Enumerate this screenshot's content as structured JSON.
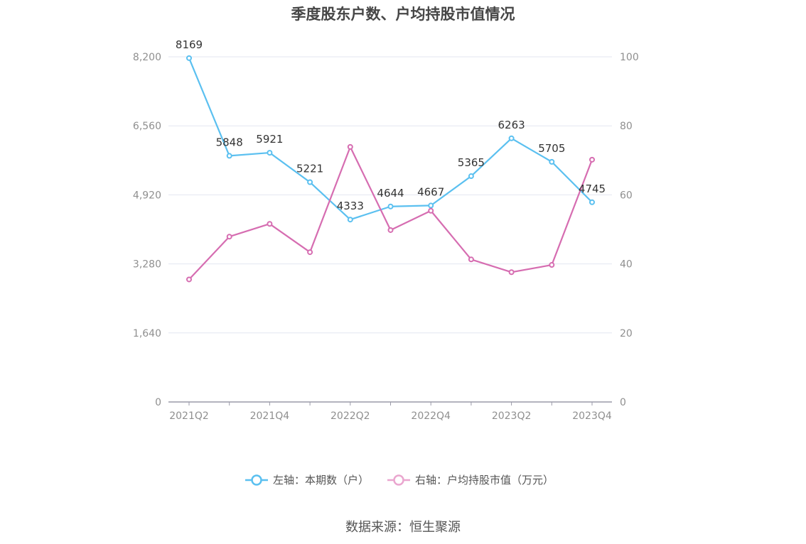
{
  "chart_data": {
    "type": "line",
    "title": "季度股东户数、户均持股市值情况",
    "categories": [
      "2021Q2",
      "2021Q3",
      "2021Q4",
      "2022Q1",
      "2022Q2",
      "2022Q3",
      "2022Q4",
      "2023Q1",
      "2023Q2",
      "2023Q3",
      "2023Q4"
    ],
    "x_tick_labels": [
      "2021Q2",
      "2021Q4",
      "2022Q2",
      "2022Q4",
      "2023Q2",
      "2023Q4"
    ],
    "left_axis": {
      "ylim": [
        0,
        8200
      ],
      "ticks": [
        "0",
        "1,640",
        "3,280",
        "4,920",
        "6,560",
        "8,200"
      ]
    },
    "right_axis": {
      "ylim": [
        0,
        100
      ],
      "ticks": [
        "0",
        "20",
        "40",
        "60",
        "80",
        "100"
      ]
    },
    "grid": true,
    "legend_position": "bottom-center",
    "series": [
      {
        "name": "左轴：本期数（户）",
        "axis": "left",
        "color": "#5bc0f0",
        "values": [
          8169,
          5848,
          5921,
          5221,
          4333,
          4644,
          4667,
          5365,
          6263,
          5705,
          4745
        ],
        "data_labels": [
          "8169",
          "5848",
          "5921",
          "5221",
          "4333",
          "4644",
          "4667",
          "5365",
          "6263",
          "5705",
          "4745"
        ]
      },
      {
        "name": "右轴：户均持股市值（万元）",
        "axis": "right",
        "color": "#d66db1",
        "legend_color": "#eaa6cf",
        "values": [
          35.5,
          47.9,
          51.6,
          43.4,
          73.9,
          49.8,
          55.4,
          41.3,
          37.6,
          39.7,
          70.2
        ]
      }
    ]
  },
  "source": "数据来源：恒生聚源"
}
